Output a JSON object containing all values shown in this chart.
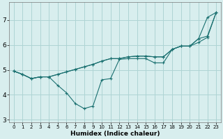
{
  "xlabel": "Humidex (Indice chaleur)",
  "x": [
    0,
    1,
    2,
    3,
    4,
    5,
    6,
    7,
    8,
    9,
    10,
    11,
    12,
    13,
    14,
    15,
    16,
    17,
    18,
    19,
    20,
    21,
    22,
    23
  ],
  "line1": [
    4.95,
    4.82,
    4.65,
    4.72,
    4.72,
    4.82,
    4.92,
    5.02,
    5.12,
    5.22,
    5.35,
    5.45,
    5.45,
    5.52,
    5.55,
    5.55,
    5.52,
    5.52,
    5.82,
    5.95,
    5.95,
    6.1,
    6.3,
    7.3
  ],
  "line2": [
    4.95,
    4.82,
    4.65,
    4.72,
    4.72,
    4.38,
    4.08,
    3.65,
    3.45,
    3.55,
    4.6,
    4.65,
    5.42,
    5.45,
    5.45,
    5.45,
    5.28,
    5.28,
    5.82,
    5.95,
    5.95,
    6.25,
    7.1,
    7.3
  ],
  "line3": [
    4.95,
    4.82,
    4.65,
    4.72,
    4.72,
    4.82,
    4.92,
    5.02,
    5.12,
    5.22,
    5.35,
    5.45,
    5.45,
    5.52,
    5.55,
    5.55,
    5.52,
    5.52,
    5.82,
    5.95,
    5.95,
    6.25,
    6.35,
    7.3
  ],
  "line_color": "#1a7070",
  "bg_color": "#d8eeee",
  "grid_color": "#aed4d4",
  "ylim": [
    2.9,
    7.7
  ],
  "xlim": [
    -0.5,
    23.5
  ],
  "yticks": [
    3,
    4,
    5,
    6,
    7
  ],
  "xticks": [
    0,
    1,
    2,
    3,
    4,
    5,
    6,
    7,
    8,
    9,
    10,
    11,
    12,
    13,
    14,
    15,
    16,
    17,
    18,
    19,
    20,
    21,
    22,
    23
  ]
}
